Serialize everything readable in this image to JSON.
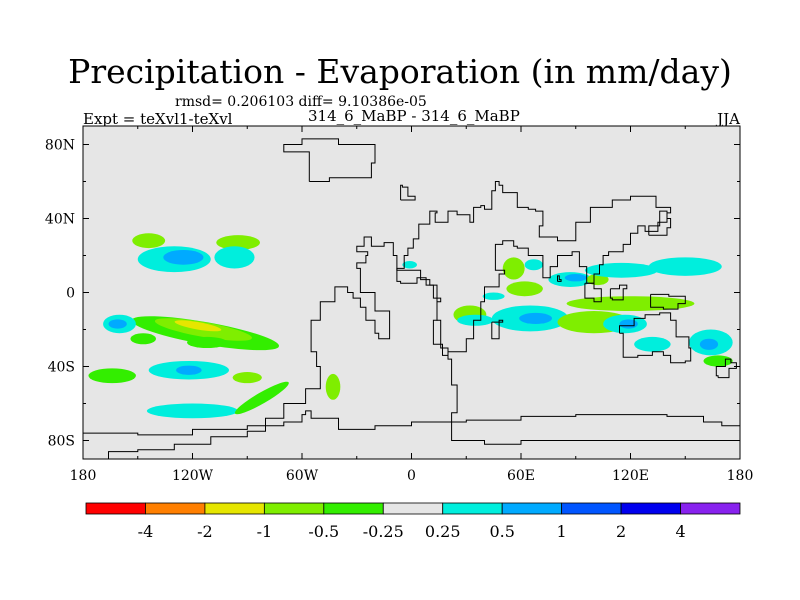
{
  "figure": {
    "title": "Precipitation - Evaporation (in mm/day)",
    "stats": "rmsd= 0.206103 diff= 9.10386e-05",
    "experiment": "Expt = teXvl1-teXvl",
    "case": "314_6_MaBP - 314_6_MaBP",
    "season": "JJA"
  },
  "chart_data": {
    "type": "heatmap",
    "title": "Precipitation - Evaporation (in mm/day)",
    "subtitle": "rmsd= 0.206103 diff= 9.10386e-05",
    "xlabel": "",
    "ylabel": "",
    "xlim": [
      -180,
      180
    ],
    "ylim": [
      -90,
      90
    ],
    "x_ticks": [
      -180,
      -120,
      -60,
      0,
      60,
      120,
      180
    ],
    "x_tick_labels": [
      "180",
      "120W",
      "60W",
      "0",
      "60E",
      "120E",
      "180"
    ],
    "y_ticks": [
      80,
      40,
      0,
      -40,
      -80
    ],
    "y_tick_labels": [
      "80N",
      "40N",
      "0",
      "40S",
      "80S"
    ],
    "background_color": "#e6e6e6",
    "colorbar": {
      "levels": [
        "-4",
        "-2",
        "-1",
        "-0.5",
        "-0.25",
        "0.25",
        "0.5",
        "1",
        "2",
        "4"
      ],
      "colors": [
        "#ff0000",
        "#ff7f00",
        "#e6e600",
        "#7fee00",
        "#33ee00",
        "#e6e6e6",
        "#00eedd",
        "#00aaff",
        "#0055ff",
        "#0000ee",
        "#8822ee"
      ]
    },
    "anomalies": [
      {
        "lon": -144,
        "lat": 28,
        "rx": 9,
        "ry": 4,
        "level": -0.5
      },
      {
        "lon": -130,
        "lat": 18,
        "rx": 20,
        "ry": 7,
        "level": 0.25
      },
      {
        "lon": -125,
        "lat": 19,
        "rx": 11,
        "ry": 4,
        "level": 0.5
      },
      {
        "lon": -95,
        "lat": 27,
        "rx": 12,
        "ry": 4,
        "level": -0.5
      },
      {
        "lon": -97,
        "lat": 19,
        "rx": 11,
        "ry": 6,
        "level": 0.25
      },
      {
        "lon": -113,
        "lat": -22,
        "rx": 41,
        "ry": 6,
        "level": -0.25,
        "angle": 10
      },
      {
        "lon": -114,
        "lat": -20,
        "rx": 27,
        "ry": 4,
        "level": -0.5,
        "angle": 10
      },
      {
        "lon": -117,
        "lat": -18,
        "rx": 13,
        "ry": 2,
        "level": -1,
        "angle": 10
      },
      {
        "lon": -160,
        "lat": -17,
        "rx": 9,
        "ry": 5,
        "level": 0.25
      },
      {
        "lon": -161,
        "lat": -17,
        "rx": 5,
        "ry": 2.5,
        "level": 0.5
      },
      {
        "lon": -147,
        "lat": -25,
        "rx": 7,
        "ry": 3,
        "level": -0.25
      },
      {
        "lon": -112,
        "lat": -27,
        "rx": 11,
        "ry": 3,
        "level": -0.25
      },
      {
        "lon": -122,
        "lat": -42,
        "rx": 22,
        "ry": 5,
        "level": 0.25
      },
      {
        "lon": -122,
        "lat": -42,
        "rx": 7,
        "ry": 2.5,
        "level": 0.5
      },
      {
        "lon": -164,
        "lat": -45,
        "rx": 13,
        "ry": 4,
        "level": -0.25
      },
      {
        "lon": -90,
        "lat": -46,
        "rx": 8,
        "ry": 3,
        "level": -0.5
      },
      {
        "lon": -120,
        "lat": -64,
        "rx": 25,
        "ry": 4,
        "level": 0.25
      },
      {
        "lon": -82,
        "lat": -57,
        "rx": 17,
        "ry": 3,
        "level": -0.25,
        "angle": -30
      },
      {
        "lon": -43,
        "lat": -51,
        "rx": 4,
        "ry": 7,
        "level": -0.5
      },
      {
        "lon": -1,
        "lat": 15,
        "rx": 4,
        "ry": 2,
        "level": 0.25
      },
      {
        "lon": 32,
        "lat": -12,
        "rx": 9,
        "ry": 5,
        "level": -0.5
      },
      {
        "lon": 35,
        "lat": -15,
        "rx": 10,
        "ry": 3,
        "level": 0.25
      },
      {
        "lon": 45,
        "lat": -2,
        "rx": 6,
        "ry": 2,
        "level": 0.25
      },
      {
        "lon": 56,
        "lat": 13,
        "rx": 6,
        "ry": 6,
        "level": -0.5
      },
      {
        "lon": 67,
        "lat": 15,
        "rx": 5,
        "ry": 3,
        "level": 0.25
      },
      {
        "lon": 87,
        "lat": 7,
        "rx": 12,
        "ry": 4,
        "level": 0.25
      },
      {
        "lon": 90,
        "lat": 8,
        "rx": 6,
        "ry": 2,
        "level": 0.5
      },
      {
        "lon": 62,
        "lat": 2,
        "rx": 10,
        "ry": 4,
        "level": -0.5
      },
      {
        "lon": 102,
        "lat": 7,
        "rx": 6,
        "ry": 3,
        "level": -0.5
      },
      {
        "lon": 115,
        "lat": 12,
        "rx": 20,
        "ry": 4,
        "level": 0.25
      },
      {
        "lon": 150,
        "lat": 14,
        "rx": 20,
        "ry": 5,
        "level": 0.25
      },
      {
        "lon": 120,
        "lat": -6,
        "rx": 35,
        "ry": 4,
        "level": -0.5
      },
      {
        "lon": 65,
        "lat": -14,
        "rx": 21,
        "ry": 7,
        "level": 0.25
      },
      {
        "lon": 68,
        "lat": -14,
        "rx": 9,
        "ry": 3,
        "level": 0.5
      },
      {
        "lon": 100,
        "lat": -16,
        "rx": 20,
        "ry": 6,
        "level": -0.5
      },
      {
        "lon": 117,
        "lat": -17,
        "rx": 12,
        "ry": 5,
        "level": 0.25
      },
      {
        "lon": 119,
        "lat": -17,
        "rx": 5,
        "ry": 2.5,
        "level": 0.5
      },
      {
        "lon": 132,
        "lat": -28,
        "rx": 10,
        "ry": 4,
        "level": 0.25
      },
      {
        "lon": 164,
        "lat": -27,
        "rx": 12,
        "ry": 7,
        "level": 0.25
      },
      {
        "lon": 163,
        "lat": -28,
        "rx": 5,
        "ry": 3,
        "level": 0.5
      },
      {
        "lon": 168,
        "lat": -37,
        "rx": 8,
        "ry": 3,
        "level": -0.25
      }
    ],
    "coastlines": [
      {
        "name": "americas",
        "points": [
          [
            -166,
            -90
          ],
          [
            -166,
            -86
          ],
          [
            -150,
            -85
          ],
          [
            -130,
            -82
          ],
          [
            -110,
            -78
          ],
          [
            -90,
            -75
          ],
          [
            -80,
            -68
          ],
          [
            -70,
            -60
          ],
          [
            -58,
            -52
          ],
          [
            -50,
            -40
          ],
          [
            -52,
            -32
          ],
          [
            -55,
            -24
          ],
          [
            -55,
            -15
          ],
          [
            -50,
            -5
          ],
          [
            -42,
            3
          ],
          [
            -35,
            0
          ],
          [
            -32,
            -3
          ],
          [
            -28,
            -8
          ],
          [
            -25,
            -15
          ],
          [
            -20,
            -22
          ],
          [
            -18,
            -25
          ],
          [
            -12,
            -24
          ],
          [
            -12,
            -10
          ],
          [
            -20,
            0
          ],
          [
            -28,
            8
          ],
          [
            -28,
            13
          ],
          [
            -30,
            16
          ],
          [
            -25,
            20
          ],
          [
            -24,
            22
          ],
          [
            -30,
            25
          ],
          [
            -26,
            30
          ],
          [
            -22,
            28
          ],
          [
            -22,
            25
          ],
          [
            -18,
            25
          ],
          [
            -15,
            27
          ],
          [
            -10,
            20
          ],
          [
            -8,
            12
          ],
          [
            5,
            7
          ],
          [
            10,
            4
          ],
          [
            14,
            -3
          ],
          [
            16,
            -5
          ],
          [
            14,
            -15
          ],
          [
            16,
            -30
          ],
          [
            20,
            -36
          ],
          [
            22,
            -50
          ],
          [
            25,
            -65
          ],
          [
            22,
            -80
          ],
          [
            40,
            -82
          ],
          [
            60,
            -80
          ],
          [
            90,
            -80
          ],
          [
            120,
            -80
          ],
          [
            150,
            -80
          ],
          [
            180,
            -78
          ]
        ]
      },
      {
        "name": "eurasia-africa",
        "points": [
          [
            14,
            -3
          ],
          [
            12,
            4
          ],
          [
            8,
            8
          ],
          [
            3,
            5
          ],
          [
            -6,
            6
          ],
          [
            -8,
            13
          ],
          [
            -4,
            20
          ],
          [
            -2,
            24
          ],
          [
            1,
            29
          ],
          [
            4,
            33
          ],
          [
            4,
            37
          ],
          [
            10,
            44
          ],
          [
            14,
            43
          ],
          [
            13,
            38
          ],
          [
            20,
            44
          ],
          [
            25,
            42
          ],
          [
            32,
            38
          ],
          [
            34,
            46
          ],
          [
            38,
            47
          ],
          [
            40,
            45
          ],
          [
            44,
            55
          ],
          [
            46,
            60
          ],
          [
            48,
            58
          ],
          [
            50,
            54
          ],
          [
            56,
            54
          ],
          [
            58,
            46
          ],
          [
            64,
            45
          ],
          [
            68,
            44
          ],
          [
            72,
            36
          ],
          [
            70,
            30
          ],
          [
            80,
            28
          ],
          [
            90,
            38
          ],
          [
            98,
            46
          ],
          [
            110,
            50
          ],
          [
            120,
            52
          ],
          [
            134,
            46
          ],
          [
            140,
            46
          ],
          [
            142,
            43
          ],
          [
            140,
            38
          ],
          [
            135,
            33
          ],
          [
            128,
            36
          ],
          [
            124,
            32
          ],
          [
            120,
            26
          ],
          [
            116,
            22
          ],
          [
            108,
            20
          ],
          [
            105,
            15
          ],
          [
            103,
            10
          ],
          [
            100,
            5
          ],
          [
            96,
            14
          ],
          [
            92,
            22
          ],
          [
            88,
            20
          ],
          [
            80,
            14
          ],
          [
            76,
            8
          ],
          [
            72,
            20
          ],
          [
            64,
            24
          ],
          [
            58,
            25
          ],
          [
            56,
            28
          ],
          [
            50,
            26
          ],
          [
            46,
            12
          ],
          [
            51,
            10
          ],
          [
            48,
            3
          ],
          [
            40,
            -5
          ],
          [
            38,
            -15
          ],
          [
            34,
            -25
          ],
          [
            30,
            -32
          ],
          [
            20,
            -34
          ],
          [
            17,
            -28
          ],
          [
            12,
            -15
          ],
          [
            14,
            -3
          ]
        ]
      },
      {
        "name": "australia",
        "points": [
          [
            114,
            -22
          ],
          [
            116,
            -35
          ],
          [
            124,
            -34
          ],
          [
            132,
            -32
          ],
          [
            138,
            -34
          ],
          [
            142,
            -38
          ],
          [
            150,
            -37
          ],
          [
            153,
            -30
          ],
          [
            152,
            -24
          ],
          [
            145,
            -15
          ],
          [
            142,
            -11
          ],
          [
            136,
            -12
          ],
          [
            132,
            -12
          ],
          [
            128,
            -14
          ],
          [
            122,
            -18
          ],
          [
            114,
            -22
          ]
        ]
      },
      {
        "name": "antarctica",
        "points": [
          [
            -180,
            -76
          ],
          [
            -150,
            -77
          ],
          [
            -120,
            -74
          ],
          [
            -90,
            -72
          ],
          [
            -70,
            -70
          ],
          [
            -60,
            -66
          ],
          [
            -58,
            -64
          ],
          [
            -55,
            -68
          ],
          [
            -40,
            -74
          ],
          [
            -20,
            -72
          ],
          [
            0,
            -70
          ],
          [
            30,
            -69
          ],
          [
            60,
            -67
          ],
          [
            90,
            -66
          ],
          [
            120,
            -66
          ],
          [
            140,
            -67
          ],
          [
            160,
            -70
          ],
          [
            170,
            -72
          ],
          [
            180,
            -76
          ]
        ]
      },
      {
        "name": "indonesia",
        "points": [
          [
            95,
            5
          ],
          [
            100,
            2
          ],
          [
            104,
            -5
          ],
          [
            100,
            -3
          ],
          [
            95,
            5
          ]
        ]
      },
      {
        "name": "borneo",
        "points": [
          [
            109,
            2
          ],
          [
            114,
            4
          ],
          [
            118,
            2
          ],
          [
            116,
            -4
          ],
          [
            110,
            -3
          ],
          [
            109,
            2
          ]
        ]
      },
      {
        "name": "new-guinea",
        "points": [
          [
            131,
            -1
          ],
          [
            141,
            -2
          ],
          [
            150,
            -6
          ],
          [
            146,
            -9
          ],
          [
            138,
            -8
          ],
          [
            131,
            -1
          ]
        ]
      },
      {
        "name": "madagascar",
        "points": [
          [
            44,
            -16
          ],
          [
            50,
            -15
          ],
          [
            48,
            -25
          ],
          [
            45,
            -25
          ],
          [
            44,
            -16
          ]
        ]
      },
      {
        "name": "greenland",
        "points": [
          [
            -56,
            60
          ],
          [
            -45,
            62
          ],
          [
            -22,
            70
          ],
          [
            -20,
            80
          ],
          [
            -40,
            83
          ],
          [
            -60,
            80
          ],
          [
            -70,
            76
          ],
          [
            -56,
            60
          ]
        ]
      },
      {
        "name": "japan",
        "points": [
          [
            130,
            31
          ],
          [
            140,
            35
          ],
          [
            142,
            40
          ],
          [
            140,
            44
          ],
          [
            136,
            36
          ],
          [
            130,
            33
          ],
          [
            130,
            31
          ]
        ]
      },
      {
        "name": "uk",
        "points": [
          [
            -6,
            50
          ],
          [
            2,
            52
          ],
          [
            -2,
            57
          ],
          [
            -5,
            58
          ],
          [
            -6,
            54
          ],
          [
            -6,
            50
          ]
        ]
      },
      {
        "name": "new-zealand",
        "points": [
          [
            168,
            -46
          ],
          [
            174,
            -41
          ],
          [
            178,
            -38
          ],
          [
            175,
            -36
          ],
          [
            172,
            -40
          ],
          [
            167,
            -45
          ],
          [
            168,
            -46
          ]
        ]
      },
      {
        "name": "sri-lanka",
        "points": [
          [
            80,
            6
          ],
          [
            82,
            7
          ],
          [
            81,
            9
          ],
          [
            80,
            6
          ]
        ]
      }
    ]
  }
}
